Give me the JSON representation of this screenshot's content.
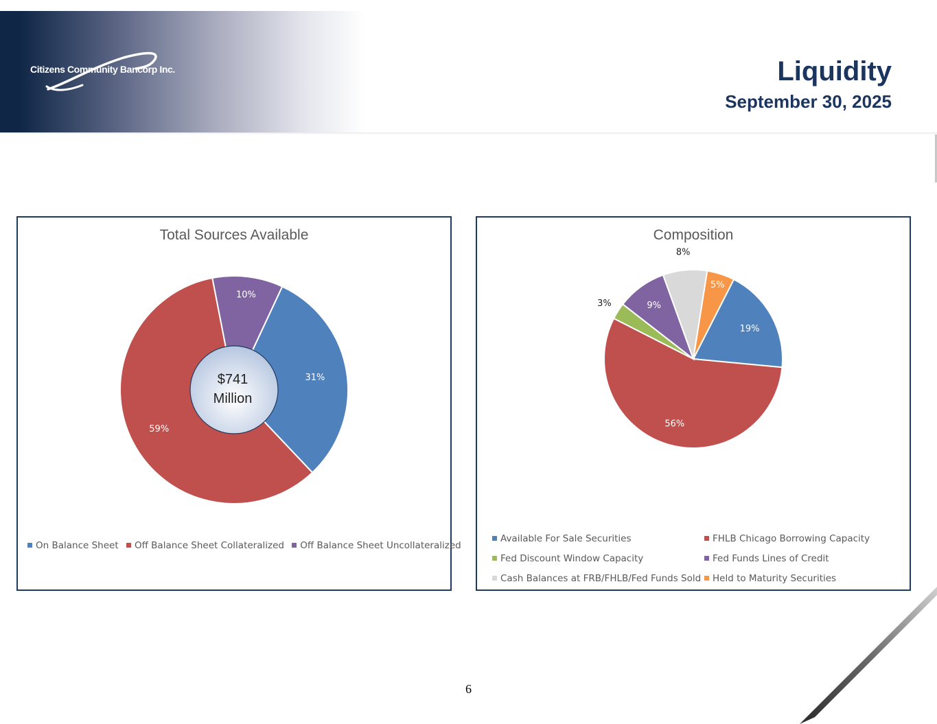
{
  "header": {
    "company_logo_text": "Citizens Community Bancorp Inc.",
    "title": "Liquidity",
    "date": "September 30, 2025"
  },
  "colors": {
    "navy": "#1c355e",
    "blue": "#4f81bd",
    "red": "#c0504d",
    "green": "#9bbb59",
    "purple": "#8064a2",
    "gray": "#d9d9d9",
    "orange": "#f79646"
  },
  "chart_data": [
    {
      "type": "donut",
      "title": "Total Sources Available",
      "center_label": [
        "$741",
        "Million"
      ],
      "categories": [
        "On Balance Sheet",
        "Off Balance Sheet Collateralized",
        "Off Balance Sheet Uncollateralized"
      ],
      "values": [
        31,
        59,
        10
      ],
      "labels": [
        "31%",
        "59%",
        "10%"
      ],
      "colors": [
        "#4f81bd",
        "#c0504d",
        "#8064a2"
      ],
      "legend_position": "bottom"
    },
    {
      "type": "pie",
      "title": "Composition",
      "categories": [
        "Available For Sale Securities",
        "FHLB Chicago Borrowing Capacity",
        "Fed Discount Window Capacity",
        "Fed Funds Lines of Credit",
        "Cash Balances at FRB/FHLB/Fed Funds Sold",
        "Held to Maturity Securities"
      ],
      "values": [
        19,
        56,
        3,
        9,
        8,
        5
      ],
      "labels": [
        "19%",
        "56%",
        "3%",
        "9%",
        "8%",
        "5%"
      ],
      "colors": [
        "#4f81bd",
        "#c0504d",
        "#9bbb59",
        "#8064a2",
        "#d9d9d9",
        "#f79646"
      ],
      "legend_position": "bottom"
    }
  ],
  "page_number": "6"
}
